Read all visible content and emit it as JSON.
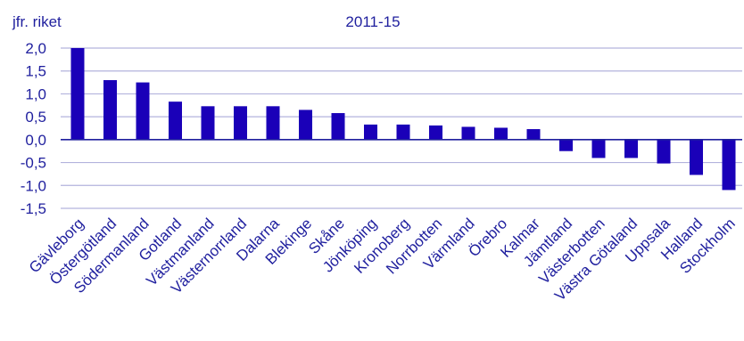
{
  "chart_data": {
    "type": "bar",
    "title": "2011-15",
    "ylabel": "jfr. riket",
    "xlabel": "",
    "ylim": [
      -1.5,
      2.0
    ],
    "yticks": [
      "2,0",
      "1,5",
      "1,0",
      "0,5",
      "0,0",
      "-0,5",
      "-1,0",
      "-1,5"
    ],
    "ytick_values": [
      2.0,
      1.5,
      1.0,
      0.5,
      0.0,
      -0.5,
      -1.0,
      -1.5
    ],
    "grid": true,
    "categories": [
      "Gävleborg",
      "Östergötland",
      "Södermanland",
      "Gotland",
      "Västmanland",
      "Västernorrland",
      "Dalarna",
      "Blekinge",
      "Skåne",
      "Jönköping",
      "Kronoberg",
      "Norrbotten",
      "Värmland",
      "Örebro",
      "Kalmar",
      "Jämtland",
      "Västerbotten",
      "Västra Götaland",
      "Uppsala",
      "Halland",
      "Stockholm"
    ],
    "values": [
      2.0,
      1.3,
      1.25,
      0.83,
      0.73,
      0.73,
      0.73,
      0.65,
      0.58,
      0.33,
      0.33,
      0.31,
      0.28,
      0.26,
      0.23,
      -0.25,
      -0.4,
      -0.4,
      -0.52,
      -0.77,
      -1.1
    ],
    "colors": {
      "bar": "#1a00b8",
      "grid": "#b3b3dd",
      "text": "#1f1f9e",
      "axis": "#1f1f9e"
    }
  }
}
